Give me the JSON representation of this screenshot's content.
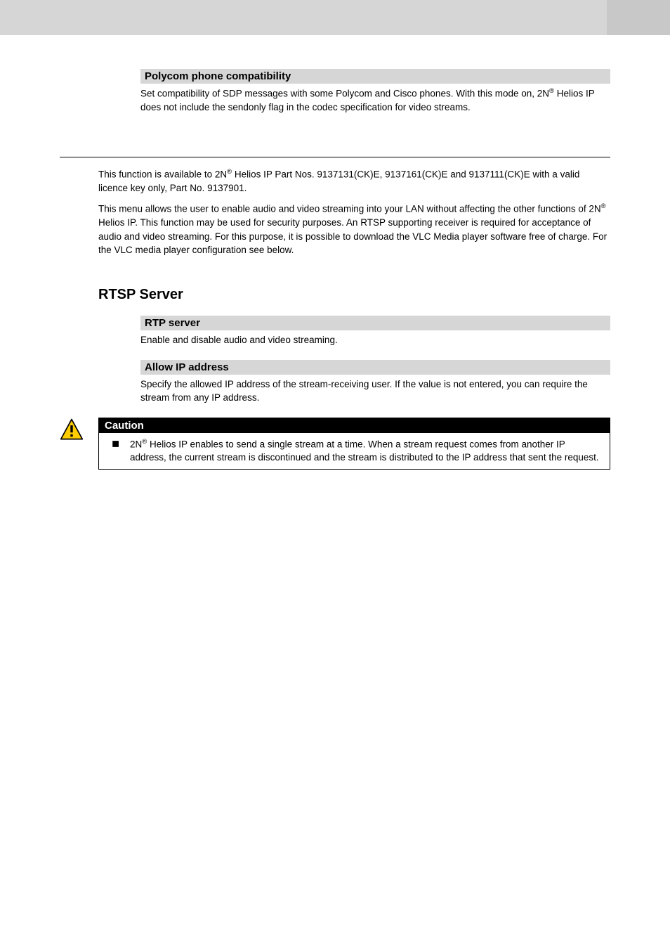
{
  "colors": {
    "topbar_bg": "#d6d6d6",
    "topbar_right_bg": "#c8c8c8",
    "section_hdr_bg": "#d6d6d6",
    "caution_title_bg": "#000000",
    "caution_title_fg": "#ffffff",
    "caution_border": "#000000",
    "page_bg": "#ffffff",
    "text": "#000000",
    "caution_icon_border": "#000000",
    "caution_icon_fill": "#ffcc00"
  },
  "typography": {
    "body_family": "Verdana, Geneva, sans-serif",
    "body_size_pt": 10,
    "section_hdr_size_pt": 11,
    "h2_size_pt": 15
  },
  "sections": {
    "polycom": {
      "title": "Polycom phone compatibility",
      "body": "Set compatibility of SDP messages with some Polycom and Cisco phones. With this mode on, 2N® Helios IP does not include the sendonly flag in the codec specification for video streams."
    },
    "rtp": {
      "title": "RTP server",
      "body": "Enable and disable audio and video streaming."
    },
    "allowip": {
      "title": "Allow IP address",
      "body": "Specify the allowed IP address of the stream-receiving user. If the value is not entered, you can require the stream from any IP address."
    }
  },
  "intro": {
    "p1": "This function is available to 2N® Helios IP Part Nos. 9137131(CK)E, 9137161(CK)E and 9137111(CK)E with a valid licence key only, Part No. 9137901.",
    "p2": "This menu allows the user to enable audio and video streaming into your LAN without affecting the other functions of 2N® Helios IP. This function may be used for security purposes. An RTSP supporting receiver is required for acceptance of audio and video streaming. For this purpose, it is possible to download the VLC Media player software free of charge. For the VLC media player configuration see below."
  },
  "h2": "RTSP Server",
  "caution": {
    "title": "Caution",
    "bullet": "2N® Helios IP enables to send a single stream at a time. When a stream request comes from another IP address, the current stream is discontinued and the stream is distributed to the IP address that sent the request.",
    "icon_name": "caution-triangle-icon"
  }
}
